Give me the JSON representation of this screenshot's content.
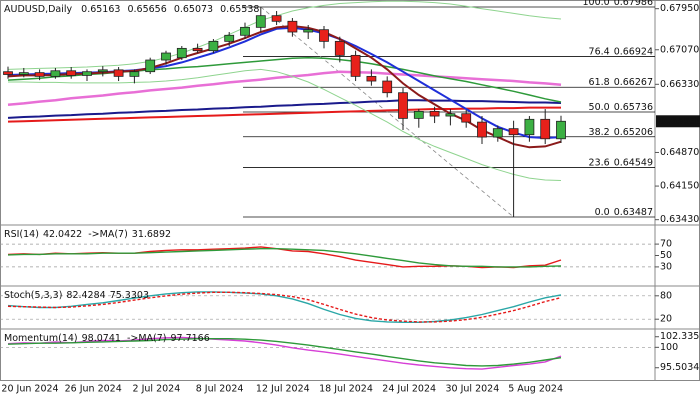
{
  "chart_data": {
    "type": "candlestick",
    "symbol": "AUDUSD,Daily",
    "categories": [
      "20 Jun 2024",
      null,
      null,
      null,
      "26 Jun 2024",
      null,
      null,
      null,
      "2 Jul 2024",
      null,
      null,
      null,
      "8 Jul 2024",
      null,
      null,
      null,
      "12 Jul 2024",
      null,
      null,
      null,
      "18 Jul 2024",
      null,
      null,
      null,
      "24 Jul 2024",
      null,
      null,
      null,
      "30 Jul 2024",
      null,
      null,
      null,
      "5 Aug 2024",
      null,
      null,
      null
    ],
    "open": [
      0.666,
      0.6654,
      0.6658,
      0.665,
      0.6662,
      0.6652,
      0.666,
      0.6664,
      0.665,
      0.666,
      0.6685,
      0.669,
      0.671,
      0.6705,
      0.6725,
      0.6738,
      0.6755,
      0.678,
      0.6768,
      0.6745,
      0.675,
      0.6725,
      0.6695,
      0.665,
      0.664,
      0.6615,
      0.656,
      0.6575,
      0.6565,
      0.657,
      0.6552,
      0.652,
      0.6538,
      0.6525,
      0.6558,
      0.65163
    ],
    "high": [
      0.6671,
      0.6668,
      0.6665,
      0.6668,
      0.667,
      0.6665,
      0.6672,
      0.667,
      0.6665,
      0.669,
      0.6705,
      0.6715,
      0.672,
      0.673,
      0.6745,
      0.6765,
      0.67986,
      0.679,
      0.6775,
      0.676,
      0.6758,
      0.6735,
      0.6705,
      0.6665,
      0.665,
      0.6625,
      0.658,
      0.6585,
      0.658,
      0.6578,
      0.6565,
      0.6545,
      0.6555,
      0.6565,
      0.658,
      0.65656
    ],
    "low": [
      0.6645,
      0.6648,
      0.6642,
      0.6645,
      0.6645,
      0.664,
      0.665,
      0.664,
      0.6635,
      0.6655,
      0.6675,
      0.6685,
      0.67,
      0.67,
      0.6715,
      0.673,
      0.6745,
      0.676,
      0.6735,
      0.673,
      0.671,
      0.668,
      0.664,
      0.663,
      0.6605,
      0.6535,
      0.654,
      0.655,
      0.6545,
      0.654,
      0.6505,
      0.651,
      0.63487,
      0.651,
      0.6505,
      0.65073
    ],
    "close": [
      0.6654,
      0.6658,
      0.665,
      0.6662,
      0.6652,
      0.666,
      0.6664,
      0.665,
      0.666,
      0.6685,
      0.67,
      0.671,
      0.6705,
      0.6725,
      0.6738,
      0.6755,
      0.678,
      0.6768,
      0.6745,
      0.675,
      0.6725,
      0.6695,
      0.665,
      0.664,
      0.6615,
      0.656,
      0.6575,
      0.6565,
      0.657,
      0.6552,
      0.652,
      0.6538,
      0.6525,
      0.6558,
      0.65163,
      0.65538
    ],
    "up_color": "#3cb043",
    "down_color": "#e8211b",
    "ylim": [
      0.63316,
      0.68136
    ],
    "yticks": [
      {
        "value": 0.6795,
        "label": "0.67950"
      },
      {
        "value": 0.6707,
        "label": "0.67070"
      },
      {
        "value": 0.6633,
        "label": "0.66330"
      },
      {
        "value": 0.6487,
        "label": "0.64870"
      },
      {
        "value": 0.6415,
        "label": "0.64150"
      },
      {
        "value": 0.6343,
        "label": "0.63430"
      }
    ],
    "overlays": [
      {
        "color": "#e51a1a",
        "width": 2,
        "values": [
          0.6553,
          0.6554,
          0.6555,
          0.6556,
          0.6557,
          0.6558,
          0.6559,
          0.656,
          0.6561,
          0.6562,
          0.6563,
          0.6564,
          0.6565,
          0.6566,
          0.6567,
          0.6568,
          0.6569,
          0.657,
          0.6571,
          0.6572,
          0.6573,
          0.6574,
          0.6575,
          0.6576,
          0.6577,
          0.6578,
          0.6579,
          0.658,
          0.658,
          0.6581,
          0.6581,
          0.6582,
          0.6582,
          0.6583,
          0.6583,
          0.6583
        ]
      },
      {
        "color": "#1a1a8c",
        "width": 2,
        "values": [
          0.6561,
          0.6563,
          0.6564,
          0.6566,
          0.6567,
          0.6569,
          0.657,
          0.6572,
          0.6573,
          0.6575,
          0.6576,
          0.6578,
          0.6579,
          0.6581,
          0.6582,
          0.6584,
          0.6585,
          0.6587,
          0.6588,
          0.659,
          0.6591,
          0.6593,
          0.6594,
          0.6596,
          0.6597,
          0.6599,
          0.6599,
          0.6598,
          0.6598,
          0.6597,
          0.6597,
          0.6596,
          0.6595,
          0.6594,
          0.6594,
          0.6593
        ]
      },
      {
        "color": "#e86fd6",
        "width": 2.5,
        "values": [
          0.6589,
          0.6592,
          0.6596,
          0.6599,
          0.6603,
          0.6606,
          0.6609,
          0.6613,
          0.6616,
          0.662,
          0.6623,
          0.6626,
          0.663,
          0.6633,
          0.6637,
          0.664,
          0.6643,
          0.6647,
          0.665,
          0.6653,
          0.6657,
          0.666,
          0.6659,
          0.6658,
          0.6656,
          0.6654,
          0.6652,
          0.665,
          0.6648,
          0.6646,
          0.6644,
          0.6642,
          0.664,
          0.6637,
          0.6635,
          0.6632
        ]
      },
      {
        "color": "#2e9a3a",
        "width": 1.5,
        "values": [
          0.6642,
          0.6644,
          0.6646,
          0.6649,
          0.6651,
          0.6654,
          0.6656,
          0.6659,
          0.6661,
          0.6664,
          0.6666,
          0.6669,
          0.6671,
          0.6674,
          0.6677,
          0.668,
          0.6683,
          0.6686,
          0.6689,
          0.669,
          0.6689,
          0.6686,
          0.6682,
          0.6677,
          0.6671,
          0.6665,
          0.6658,
          0.6651,
          0.6645,
          0.6639,
          0.6632,
          0.6625,
          0.6618,
          0.661,
          0.6602,
          0.6595
        ]
      },
      {
        "color": "#8fd48f",
        "width": 1,
        "values": [
          0.6665,
          0.6666,
          0.6667,
          0.6668,
          0.6669,
          0.667,
          0.6672,
          0.6674,
          0.6677,
          0.6682,
          0.669,
          0.67,
          0.6712,
          0.6725,
          0.674,
          0.6755,
          0.677,
          0.678,
          0.679,
          0.6797,
          0.6802,
          0.6806,
          0.6808,
          0.681,
          0.6811,
          0.6811,
          0.681,
          0.6808,
          0.6805,
          0.68,
          0.6795,
          0.679,
          0.6785,
          0.678,
          0.6776,
          0.6773
        ]
      },
      {
        "color": "#8fd48f",
        "width": 1,
        "values": [
          0.6638,
          0.6638,
          0.6637,
          0.6637,
          0.6636,
          0.6636,
          0.6636,
          0.6636,
          0.6637,
          0.6638,
          0.664,
          0.6643,
          0.6647,
          0.6652,
          0.6657,
          0.6662,
          0.6665,
          0.666,
          0.665,
          0.6638,
          0.6622,
          0.6605,
          0.6588,
          0.657,
          0.6552,
          0.6532,
          0.6515,
          0.65,
          0.6487,
          0.6474,
          0.6461,
          0.645,
          0.644,
          0.6432,
          0.6428,
          0.6427
        ]
      },
      {
        "color": "#1f2fd9",
        "width": 2,
        "values": [
          0.6653,
          0.6654,
          0.6655,
          0.6656,
          0.6657,
          0.6658,
          0.6659,
          0.6661,
          0.6663,
          0.6667,
          0.6672,
          0.668,
          0.669,
          0.67,
          0.6712,
          0.6725,
          0.674,
          0.6752,
          0.6754,
          0.675,
          0.6742,
          0.673,
          0.6715,
          0.6698,
          0.668,
          0.666,
          0.664,
          0.662,
          0.66,
          0.658,
          0.656,
          0.6542,
          0.653,
          0.652,
          0.6518,
          0.652
        ]
      },
      {
        "color": "#8b1a1a",
        "width": 2,
        "values": [
          0.665,
          0.6652,
          0.6652,
          0.6653,
          0.6655,
          0.6656,
          0.6658,
          0.666,
          0.6662,
          0.6668,
          0.6678,
          0.669,
          0.67,
          0.671,
          0.672,
          0.6732,
          0.6745,
          0.6755,
          0.6758,
          0.6754,
          0.6745,
          0.673,
          0.671,
          0.669,
          0.6665,
          0.6635,
          0.661,
          0.659,
          0.657,
          0.6555,
          0.6535,
          0.652,
          0.6505,
          0.6498,
          0.65,
          0.651
        ]
      }
    ],
    "fibonacci": [
      {
        "level": "100.0",
        "value": 0.67986
      },
      {
        "level": "76.4",
        "value": 0.66924
      },
      {
        "level": "61.8",
        "value": 0.66267
      },
      {
        "level": "50.0",
        "value": 0.65736
      },
      {
        "level": "38.2",
        "value": 0.65206
      },
      {
        "level": "23.6",
        "value": 0.64549
      },
      {
        "level": "0.0",
        "value": 0.63487
      }
    ],
    "indicators": [
      {
        "type": "line",
        "ylim": [
          0,
          100
        ],
        "yticks": [
          70,
          50,
          30
        ],
        "levels": [
          70,
          30
        ],
        "series": [
          {
            "name": "RSI(14)",
            "color": "#e51a1a",
            "values": [
              52,
              53,
              52,
              54,
              53,
              54,
              55,
              54,
              54,
              57,
              59,
              60,
              60,
              61,
              62,
              63,
              65,
              62,
              58,
              57,
              53,
              48,
              42,
              38,
              34,
              30,
              31,
              31,
              32,
              31,
              29,
              30,
              29,
              32,
              33,
              42.0422
            ]
          },
          {
            "name": "->MA(7)",
            "color": "#2e9a3a",
            "values": [
              51,
              52,
              52,
              53,
              53,
              53,
              54,
              54,
              54,
              55,
              56,
              57,
              58,
              59,
              60,
              61,
              62,
              62,
              61,
              60,
              59,
              56,
              53,
              49,
              45,
              41,
              37,
              34,
              32,
              31,
              31,
              30,
              30,
              30,
              31,
              31.6892
            ]
          }
        ]
      },
      {
        "type": "line",
        "ylim": [
          0,
          100
        ],
        "yticks": [
          80,
          20
        ],
        "levels": [
          80,
          20
        ],
        "series": [
          {
            "name": "Stoch(5,3,3)",
            "color": "#2aa7a7",
            "values": [
              55,
              52,
              50,
              50,
              53,
              58,
              62,
              68,
              74,
              80,
              85,
              88,
              90,
              90,
              89,
              87,
              85,
              80,
              72,
              60,
              45,
              32,
              22,
              16,
              13,
              12,
              12,
              14,
              18,
              24,
              32,
              42,
              52,
              64,
              75,
              82.4284
            ]
          },
          {
            "color": "#e51a1a",
            "dash": true,
            "values": [
              53,
              52,
              51,
              50,
              51,
              54,
              58,
              63,
              69,
              75,
              80,
              84,
              87,
              89,
              89,
              88,
              86,
              83,
              78,
              70,
              58,
              45,
              33,
              24,
              18,
              15,
              13,
              13,
              15,
              19,
              25,
              33,
              42,
              53,
              65,
              75.3303
            ]
          }
        ]
      },
      {
        "type": "line",
        "ylim": [
          92.8,
          103.6
        ],
        "yticks": [
          102.3355,
          100,
          95.5034
        ],
        "levels": [
          100
        ],
        "series": [
          {
            "name": "Momentum(14)",
            "color": "#d63fd6",
            "values": [
              100.8,
              101,
              100.9,
              101.2,
              101.0,
              101.3,
              101.5,
              101.4,
              101.6,
              101.9,
              102.1,
              102.2,
              102.0,
              101.8,
              101.6,
              101.4,
              101.0,
              100.5,
              99.9,
              99.4,
              99.0,
              98.5,
              98.0,
              97.5,
              97.0,
              96.5,
              96.1,
              95.8,
              95.5,
              95.3,
              95.2,
              95.6,
              96.0,
              96.3,
              96.8,
              98.0741
            ]
          },
          {
            "name": "->MA(7)",
            "color": "#2e9a3a",
            "values": [
              100.7,
              100.8,
              100.9,
              100.9,
              101.0,
              101.1,
              101.2,
              101.3,
              101.4,
              101.5,
              101.7,
              101.8,
              101.9,
              101.9,
              101.9,
              101.8,
              101.6,
              101.3,
              100.9,
              100.5,
              100.0,
              99.5,
              99.0,
              98.5,
              98.0,
              97.5,
              97.0,
              96.6,
              96.3,
              96.0,
              95.9,
              96.0,
              96.3,
              96.7,
              97.2,
              97.7166
            ]
          }
        ]
      }
    ]
  }
}
